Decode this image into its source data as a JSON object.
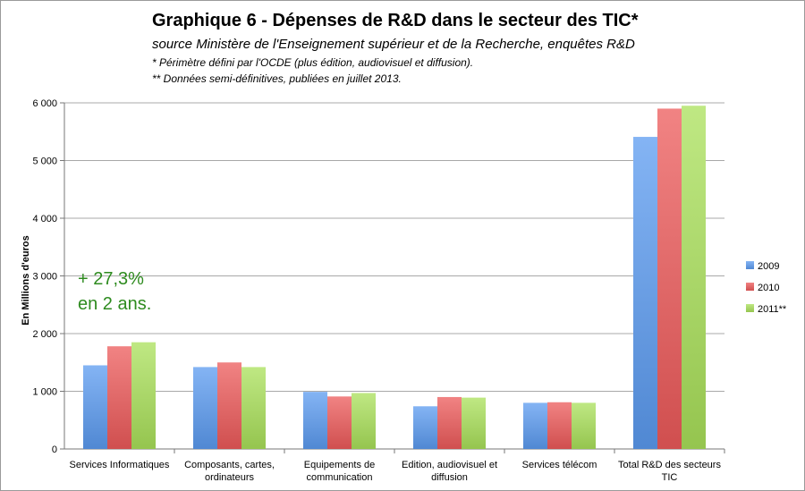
{
  "title": "Graphique 6 - Dépenses de R&D dans le secteur des TIC*",
  "subtitle": "source Ministère de l'Enseignement supérieur et de la Recherche, enquêtes R&D",
  "notes": [
    "* Périmètre défini par l'OCDE (plus édition, audiovisuel et diffusion).",
    "** Données semi-définitives, publiées en juillet 2013."
  ],
  "chart_data": {
    "type": "bar",
    "ylabel": "En Millions d'euros",
    "xlabel": "",
    "ylim": [
      0,
      6000
    ],
    "yticks": [
      0,
      1000,
      2000,
      3000,
      4000,
      5000,
      6000
    ],
    "ytick_labels": [
      "0",
      "1 000",
      "2 000",
      "3 000",
      "4 000",
      "5 000",
      "6 000"
    ],
    "grid": true,
    "legend_position": "right",
    "categories": [
      [
        "Services Informatiques"
      ],
      [
        "Composants, cartes,",
        "ordinateurs"
      ],
      [
        "Equipements de",
        "communication"
      ],
      [
        "Edition, audiovisuel et",
        "diffusion"
      ],
      [
        "Services télécom"
      ],
      [
        "Total R&D des secteurs",
        "TIC"
      ]
    ],
    "series": [
      {
        "name": "2009",
        "color": "#5b9bf0",
        "values": [
          1450,
          1420,
          990,
          740,
          800,
          5410
        ]
      },
      {
        "name": "2010",
        "color": "#ec5a5a",
        "values": [
          1780,
          1500,
          910,
          900,
          810,
          5900
        ]
      },
      {
        "name": "2011**",
        "color": "#a9e05a",
        "values": [
          1850,
          1420,
          970,
          890,
          800,
          5950
        ]
      }
    ],
    "annotation": [
      "+ 27,3%",
      "en 2 ans."
    ]
  }
}
